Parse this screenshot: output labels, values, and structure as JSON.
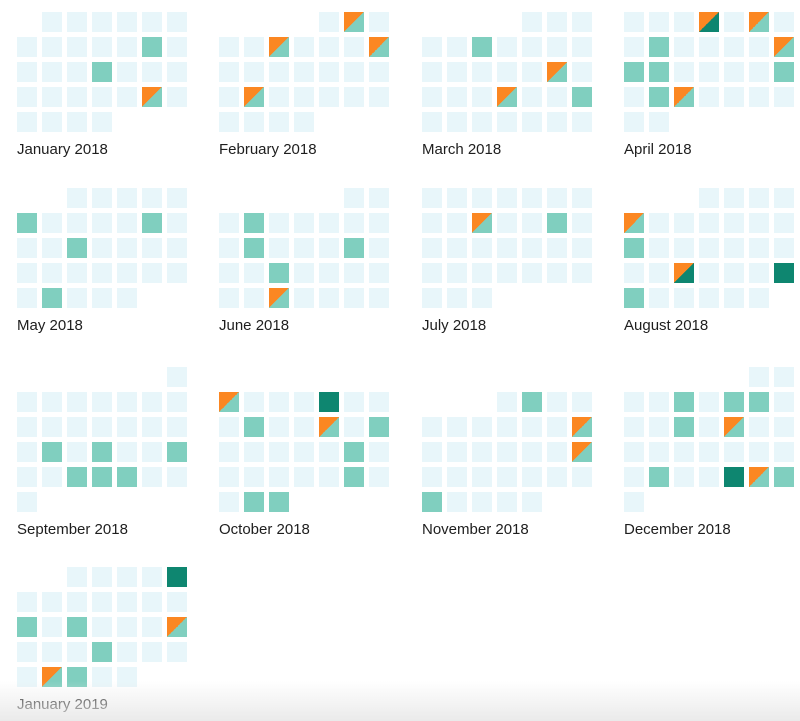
{
  "colors": {
    "empty": "#e8f6fa",
    "teal": "#80cfbf",
    "dark": "#0e8670",
    "orange": "#fb8722"
  },
  "legend_states": [
    "empty",
    "teal",
    "dark",
    "orange-teal",
    "orange-dark"
  ],
  "months": [
    {
      "label": "January 2018",
      "day_count": 31,
      "first_weekday_col": 1,
      "first_week_row": 0,
      "marked_days": {
        "12": "teal",
        "17": "teal",
        "26": "orange-teal"
      }
    },
    {
      "label": "February 2018",
      "day_count": 28,
      "first_weekday_col": 4,
      "first_week_row": 0,
      "marked_days": {
        "2": "orange-teal",
        "6": "orange-teal",
        "10": "orange-teal",
        "19": "orange-teal"
      }
    },
    {
      "label": "March 2018",
      "day_count": 31,
      "first_weekday_col": 4,
      "first_week_row": 0,
      "marked_days": {
        "6": "teal",
        "16": "orange-teal",
        "21": "orange-teal",
        "24": "teal"
      }
    },
    {
      "label": "April 2018",
      "day_count": 30,
      "first_weekday_col": 0,
      "first_week_row": 0,
      "marked_days": {
        "4": "orange-dark",
        "6": "orange-teal",
        "9": "teal",
        "14": "orange-teal",
        "15": "teal",
        "16": "teal",
        "21": "teal",
        "23": "teal",
        "24": "orange-teal"
      }
    },
    {
      "label": "May 2018",
      "day_count": 31,
      "first_weekday_col": 2,
      "first_week_row": 0,
      "marked_days": {
        "6": "teal",
        "11": "teal",
        "15": "teal",
        "28": "teal"
      }
    },
    {
      "label": "June 2018",
      "day_count": 30,
      "first_weekday_col": 5,
      "first_week_row": 0,
      "marked_days": {
        "4": "teal",
        "11": "teal",
        "15": "teal",
        "19": "teal",
        "26": "orange-teal"
      }
    },
    {
      "label": "July 2018",
      "day_count": 31,
      "first_weekday_col": 0,
      "first_week_row": 0,
      "marked_days": {
        "10": "orange-teal",
        "13": "teal"
      }
    },
    {
      "label": "August 2018",
      "day_count": 31,
      "first_weekday_col": 3,
      "first_week_row": 0,
      "marked_days": {
        "5": "orange-teal",
        "12": "teal",
        "21": "orange-dark",
        "25": "dark",
        "26": "teal"
      }
    },
    {
      "label": "September 2018",
      "day_count": 30,
      "first_weekday_col": 6,
      "first_week_row": 0,
      "marked_days": {
        "17": "teal",
        "19": "teal",
        "22": "teal",
        "25": "teal",
        "26": "teal",
        "27": "teal"
      }
    },
    {
      "label": "October 2018",
      "day_count": 31,
      "first_weekday_col": 0,
      "first_week_row": 1,
      "marked_days": {
        "1": "orange-teal",
        "5": "dark",
        "9": "teal",
        "12": "orange-teal",
        "14": "teal",
        "20": "teal",
        "27": "teal",
        "30": "teal",
        "31": "teal"
      }
    },
    {
      "label": "November 2018",
      "day_count": 30,
      "first_weekday_col": 3,
      "first_week_row": 1,
      "marked_days": {
        "2": "teal",
        "11": "orange-teal",
        "18": "orange-teal",
        "26": "teal"
      }
    },
    {
      "label": "December 2018",
      "day_count": 31,
      "first_weekday_col": 5,
      "first_week_row": 0,
      "marked_days": {
        "5": "teal",
        "7": "teal",
        "8": "teal",
        "12": "teal",
        "14": "orange-teal",
        "25": "teal",
        "28": "dark",
        "29": "orange-teal",
        "30": "teal"
      }
    },
    {
      "label": "January 2019",
      "day_count": 31,
      "first_weekday_col": 2,
      "first_week_row": 0,
      "marked_days": {
        "5": "dark",
        "13": "teal",
        "15": "teal",
        "19": "orange-teal",
        "23": "teal",
        "28": "orange-teal",
        "29": "teal"
      }
    }
  ]
}
